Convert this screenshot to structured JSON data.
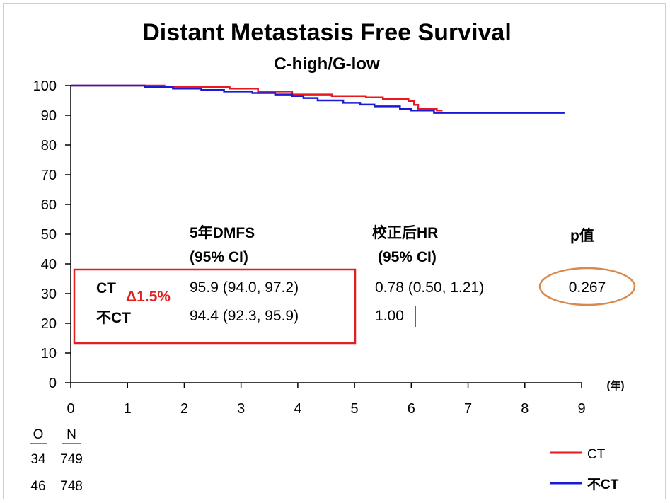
{
  "chart_data": {
    "type": "line",
    "title": "Distant Metastasis Free Survival",
    "subtitle": "C-high/G-low",
    "x_unit": "(年)",
    "xlim": [
      0,
      9
    ],
    "ylim": [
      0,
      100
    ],
    "x_ticks": [
      0,
      1,
      2,
      3,
      4,
      5,
      6,
      7,
      8,
      9
    ],
    "y_ticks": [
      0,
      10,
      20,
      30,
      40,
      50,
      60,
      70,
      80,
      90,
      100
    ],
    "series": [
      {
        "name": "CT",
        "color": "#e8191e",
        "x": [
          0,
          1.65,
          1.65,
          2.8,
          2.8,
          3.3,
          3.3,
          3.9,
          3.9,
          4.6,
          4.6,
          5.2,
          5.2,
          5.5,
          5.5,
          5.95,
          5.95,
          6.05,
          6.05,
          6.12,
          6.12,
          6.45,
          6.45,
          6.55
        ],
        "y": [
          100,
          100,
          99.5,
          99.5,
          99,
          99,
          98,
          98,
          97,
          97,
          96.5,
          96.5,
          96,
          96,
          95.5,
          95.5,
          94.8,
          94.8,
          93.5,
          93.5,
          92.2,
          92.2,
          91.6,
          91.6
        ]
      },
      {
        "name": "不CT",
        "color": "#1a1ad6",
        "x": [
          0,
          1.3,
          1.3,
          1.8,
          1.8,
          2.3,
          2.3,
          2.7,
          2.7,
          3.2,
          3.2,
          3.6,
          3.6,
          3.9,
          3.9,
          4.1,
          4.1,
          4.35,
          4.35,
          4.8,
          4.8,
          5.1,
          5.1,
          5.35,
          5.35,
          5.8,
          5.8,
          6.0,
          6.0,
          6.4,
          6.4,
          8.7
        ],
        "y": [
          100,
          100,
          99.5,
          99.5,
          99,
          99,
          98.5,
          98.5,
          98,
          98,
          97.5,
          97.5,
          97,
          97,
          96.5,
          96.5,
          95.8,
          95.8,
          95,
          95,
          94.2,
          94.2,
          93.6,
          93.6,
          93,
          93,
          92.2,
          92.2,
          91.6,
          91.6,
          90.8,
          90.8
        ]
      }
    ],
    "table": {
      "headers": {
        "dmfs_line1": "5年DMFS",
        "dmfs_line2": "(95% CI)",
        "hr_line1": "校正后HR",
        "hr_line2": "(95% CI)",
        "p": "p值"
      },
      "rows": [
        {
          "label": "CT",
          "dmfs": "95.9 (94.0, 97.2)",
          "hr": "0.78 (0.50, 1.21)",
          "p": "0.267"
        },
        {
          "label": "不CT",
          "dmfs": "94.4 (92.3, 95.9)",
          "hr": "1.00"
        }
      ],
      "delta": "Δ1.5%"
    },
    "risk_table": {
      "headers": [
        "O",
        "N"
      ],
      "rows": [
        [
          "34",
          "749"
        ],
        [
          "46",
          "748"
        ]
      ]
    },
    "legend": [
      {
        "label": "CT",
        "color": "#e8191e"
      },
      {
        "label": "不CT",
        "color": "#1a1ad6"
      }
    ],
    "annotation_colors": {
      "box": "#e02020",
      "ellipse": "#d9894a"
    }
  }
}
